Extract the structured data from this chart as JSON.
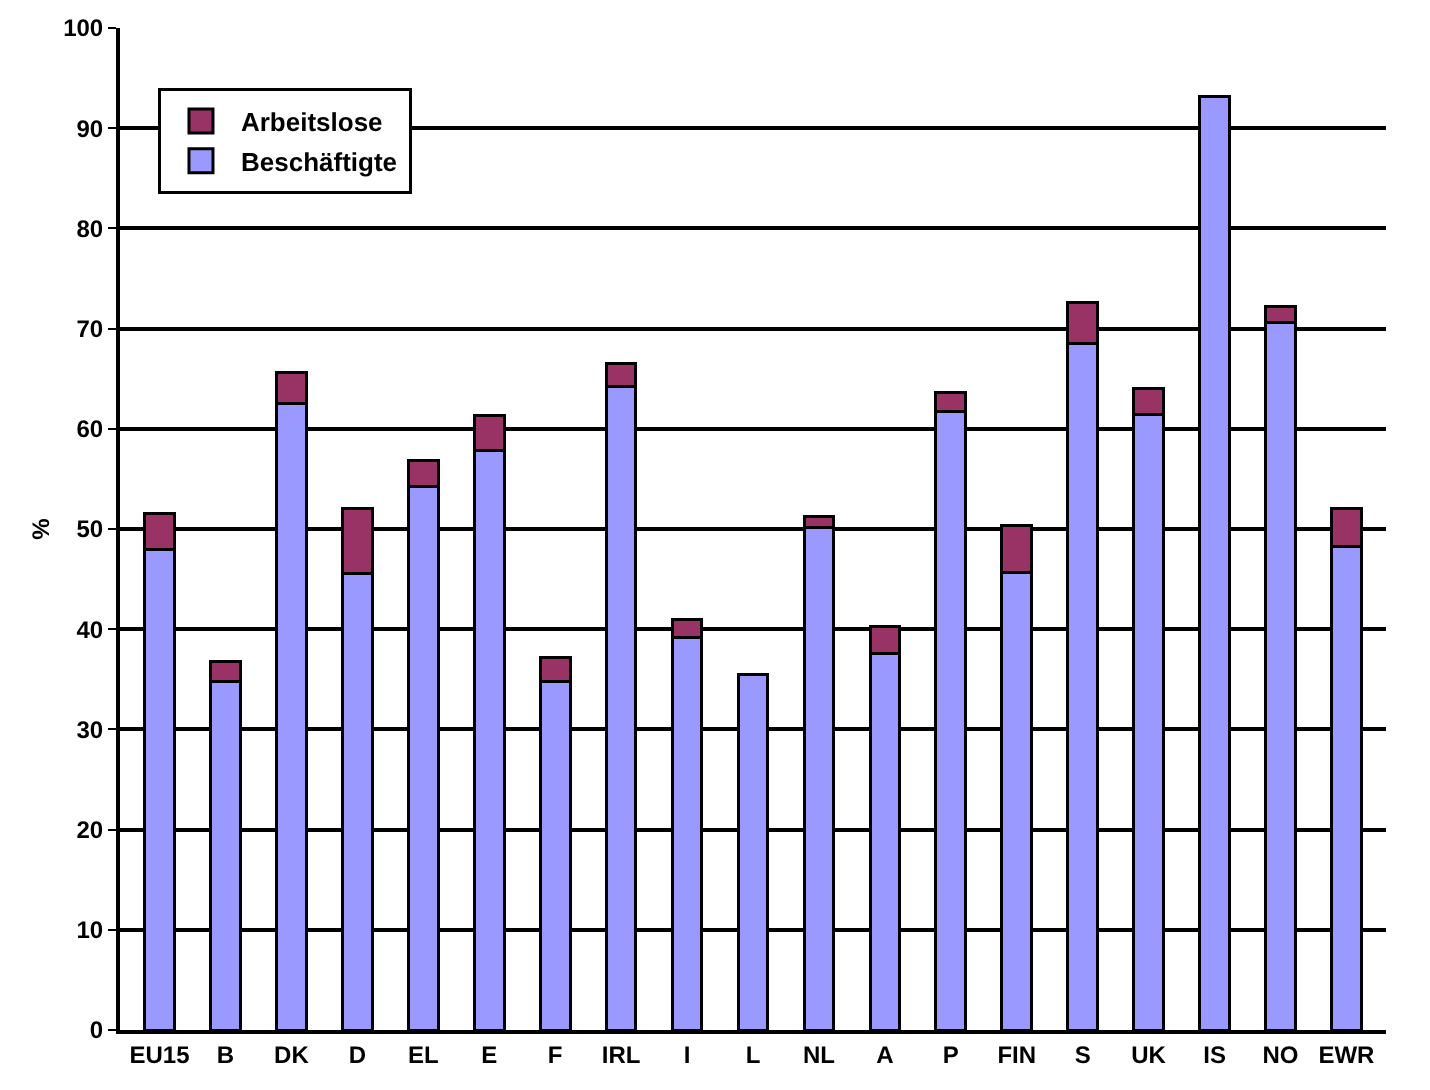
{
  "chart_data": {
    "type": "bar",
    "stacked": true,
    "ylabel": "%",
    "categories": [
      "EU15",
      "B",
      "DK",
      "D",
      "EL",
      "E",
      "F",
      "IRL",
      "I",
      "L",
      "NL",
      "A",
      "P",
      "FIN",
      "S",
      "UK",
      "IS",
      "NO",
      "EWR"
    ],
    "series": [
      {
        "name": "Beschäftigte",
        "color": "#9999ff",
        "values": [
          48,
          34.8,
          62.5,
          45.6,
          54.2,
          57.8,
          34.8,
          64.2,
          39.2,
          35.5,
          50.2,
          37.6,
          61.7,
          45.7,
          68.5,
          61.4,
          93.2,
          70.6,
          48.3
        ]
      },
      {
        "name": "Arbeitslose",
        "color": "#993366",
        "values": [
          3.5,
          2,
          3.1,
          6.4,
          2.6,
          3.5,
          2.4,
          2.3,
          1.8,
          null,
          1,
          2.7,
          1.9,
          4.7,
          4.1,
          2.6,
          null,
          1.6,
          3.7
        ]
      }
    ],
    "ylim": [
      0,
      100
    ],
    "yticks": [
      0,
      10,
      20,
      30,
      40,
      50,
      60,
      70,
      80,
      90,
      100
    ],
    "grid": "y",
    "legend": "top left"
  }
}
